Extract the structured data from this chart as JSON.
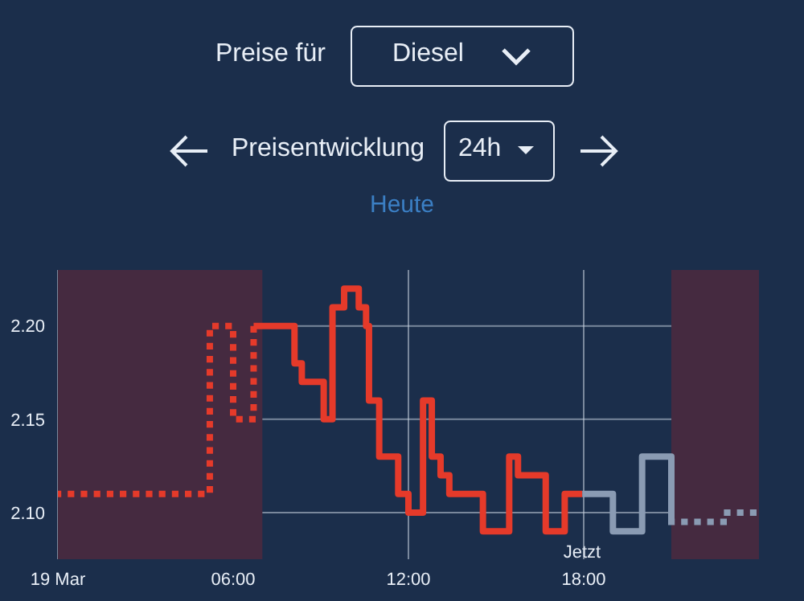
{
  "chart_data": {
    "type": "step",
    "subtitle": "Heute",
    "annotations": [
      "Preise für",
      "Diesel",
      "Preisentwicklung",
      "24h",
      "Jetzt"
    ],
    "xlim": [
      0,
      24
    ],
    "xticks": [
      {
        "value": 0,
        "label": "19 Mar"
      },
      {
        "value": 6,
        "label": "06:00"
      },
      {
        "value": 12,
        "label": "12:00"
      },
      {
        "value": 18,
        "label": "18:00"
      }
    ],
    "ylim": [
      2.075,
      2.23
    ],
    "yticks": [
      {
        "value": 2.1,
        "label": "2.10"
      },
      2.15,
      {
        "value": 2.2,
        "label": "2.20"
      }
    ],
    "grid": true,
    "bands": [
      {
        "axis": "x",
        "from": 0,
        "to": 7,
        "color": "#452a40"
      },
      {
        "axis": "x",
        "from": 21,
        "to": 24,
        "color": "#452a40"
      }
    ],
    "series": [
      {
        "color": "#e53a2a",
        "line_style": "dotted",
        "x": [
          0,
          5.2,
          6.0,
          6.7
        ],
        "values": [
          2.11,
          2.2,
          2.15,
          2.2
        ]
      },
      {
        "color": "#e53a2a",
        "line_style": "solid",
        "x": [
          6.7,
          8.1,
          8.35,
          9.1,
          9.4,
          9.8,
          10.3,
          10.55,
          10.65,
          11.0,
          11.65,
          12.0,
          12.5,
          12.8,
          13.1,
          13.4,
          14.55,
          15.45,
          15.75,
          16.7,
          17.35,
          17.95
        ],
        "values": [
          2.2,
          2.18,
          2.17,
          2.15,
          2.21,
          2.22,
          2.21,
          2.2,
          2.16,
          2.13,
          2.11,
          2.1,
          2.16,
          2.13,
          2.12,
          2.11,
          2.09,
          2.13,
          2.12,
          2.09,
          2.11,
          2.11
        ]
      },
      {
        "color": "#8a9bb3",
        "line_style": "solid",
        "x": [
          17.95,
          19.0,
          20.0,
          21.0
        ],
        "values": [
          2.11,
          2.09,
          2.13,
          2.095
        ]
      },
      {
        "color": "#8a9bb3",
        "line_style": "dotted",
        "x": [
          21.0,
          22.8,
          24
        ],
        "values": [
          2.095,
          2.1,
          2.1
        ]
      }
    ]
  }
}
